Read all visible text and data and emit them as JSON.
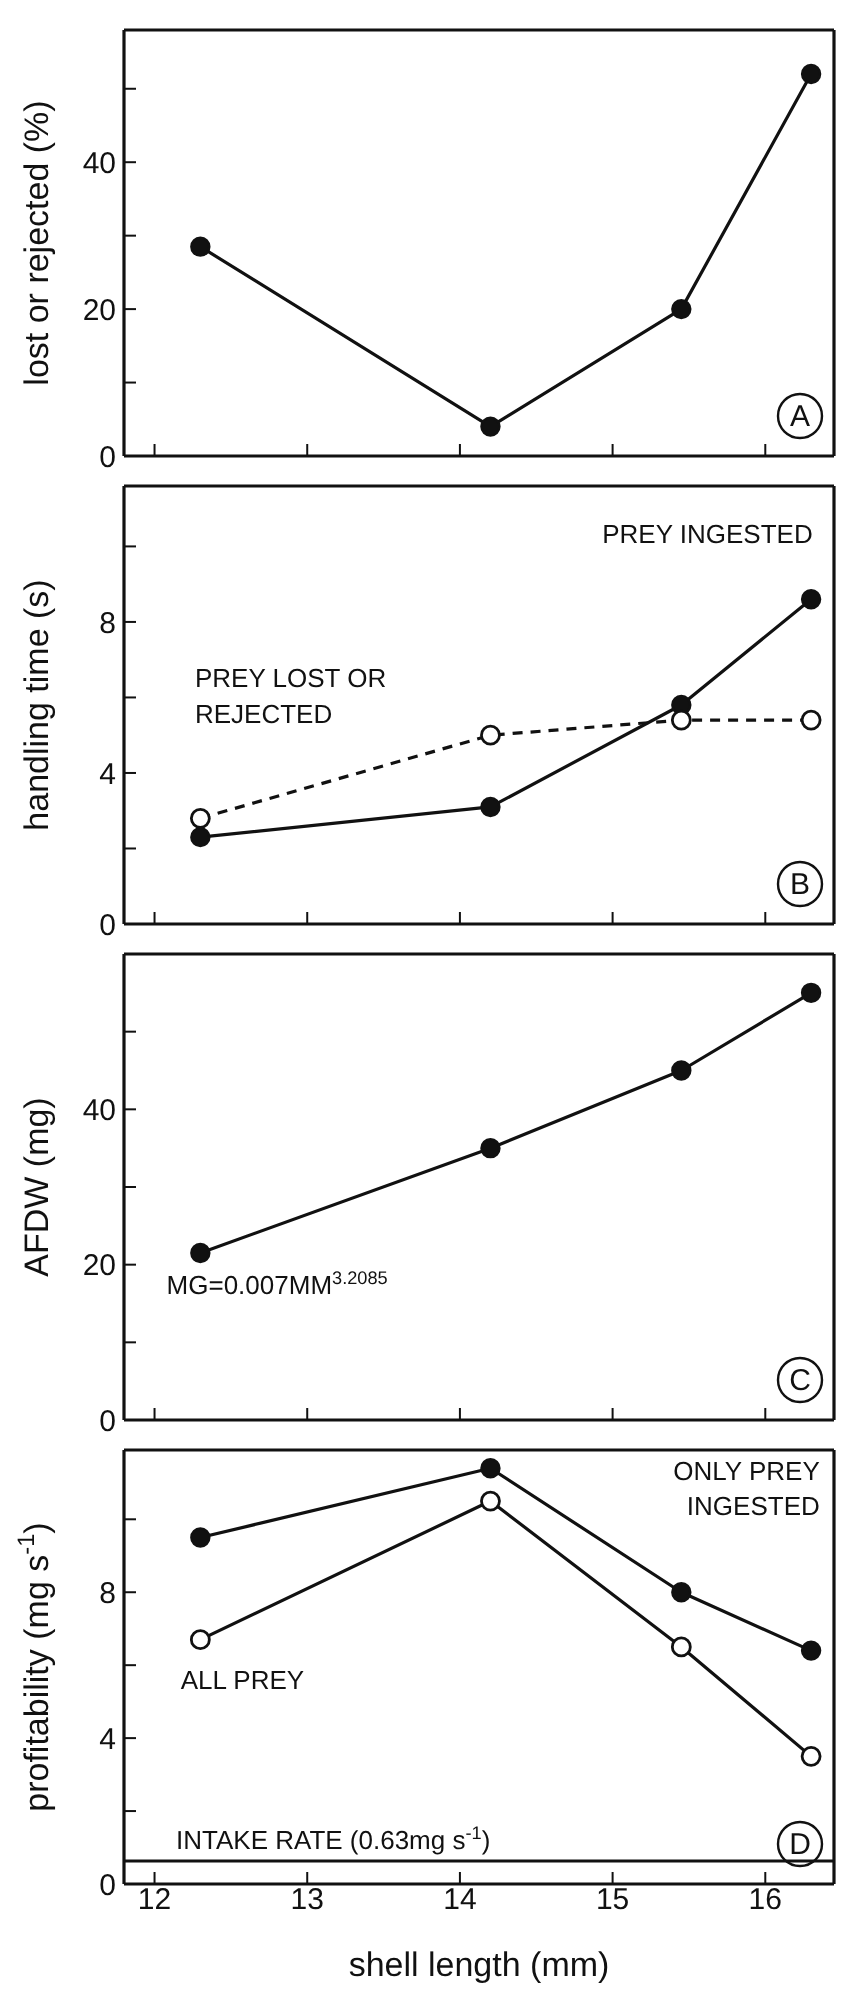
{
  "chart_data": [
    {
      "type": "line",
      "ylabel": "lost or rejected (%)",
      "x": [
        12.3,
        14.2,
        15.45,
        16.3
      ],
      "series": [
        {
          "color": "#111111",
          "values": [
            28.5,
            4,
            20,
            52
          ]
        }
      ],
      "marker": "circle",
      "line_style": "solid",
      "xlim": [
        11.8,
        16.45
      ],
      "xticks": [
        12,
        13,
        14,
        15,
        16
      ],
      "ylim": [
        0,
        58
      ],
      "yticks": [
        0,
        {
          "value": 10,
          "label": null
        },
        20,
        {
          "value": 30,
          "label": null
        },
        40,
        {
          "value": 50,
          "label": null
        }
      ],
      "tick_labels": "y",
      "annotations": [
        "A"
      ]
    },
    {
      "type": "line",
      "ylabel": "handling time (s)",
      "x": [
        12.3,
        14.2,
        15.45,
        16.3
      ],
      "series": [
        {
          "color": "#111111",
          "values": [
            2.3,
            3.1,
            5.8,
            8.6
          ],
          "line_style": "solid"
        },
        {
          "color": "#111111",
          "values": [
            2.8,
            5.0,
            5.4,
            5.4
          ],
          "line_style": "dashed",
          "marker": "open circle"
        }
      ],
      "marker": "circle",
      "xlim": [
        11.8,
        16.45
      ],
      "xticks": [
        12,
        13,
        14,
        15,
        16
      ],
      "ylim": [
        0,
        11.6
      ],
      "yticks": [
        0,
        {
          "value": 2,
          "label": null
        },
        4,
        {
          "value": 6,
          "label": null
        },
        8,
        {
          "value": 10,
          "label": null
        }
      ],
      "tick_labels": "y",
      "annotations": [
        "PREY INGESTED",
        "PREY LOST OR",
        "REJECTED",
        "B"
      ]
    },
    {
      "type": "line",
      "ylabel": "AFDW (mg)",
      "x": [
        12.3,
        14.2,
        15.45,
        16.3
      ],
      "series": [
        {
          "color": "#111111",
          "values": [
            21.5,
            35,
            45,
            55
          ]
        }
      ],
      "marker": "circle",
      "line_style": "solid",
      "xlim": [
        11.8,
        16.45
      ],
      "xticks": [
        12,
        13,
        14,
        15,
        16
      ],
      "ylim": [
        0,
        60
      ],
      "yticks": [
        0,
        {
          "value": 10,
          "label": null
        },
        20,
        {
          "value": 30,
          "label": null
        },
        40,
        {
          "value": 50,
          "label": null
        }
      ],
      "tick_labels": "y",
      "annotations": [
        "MG=0.007MM$^{3.2085}$",
        "C"
      ]
    },
    {
      "type": "line",
      "ylabel": "profitability (mg s$^{-1}$)",
      "xlabel": "shell length (mm)",
      "x": [
        12.3,
        14.2,
        15.45,
        16.3
      ],
      "series": [
        {
          "color": "#111111",
          "values": [
            9.5,
            11.4,
            8.0,
            6.4
          ]
        },
        {
          "color": "#111111",
          "values": [
            6.7,
            10.5,
            6.5,
            3.5
          ],
          "marker": "open circle"
        }
      ],
      "marker": "circle",
      "line_style": "solid",
      "xlim": [
        11.8,
        16.45
      ],
      "xticks": [
        12,
        13,
        14,
        15,
        16
      ],
      "ylim": [
        0,
        11.9
      ],
      "yticks": [
        0,
        {
          "value": 2,
          "label": null
        },
        4,
        {
          "value": 6,
          "label": null
        },
        8,
        {
          "value": 10,
          "label": null
        }
      ],
      "ref_lines": [
        {
          "axis": "y",
          "value": 0.63,
          "label": "INTAKE RATE (0.63mg s$^{-1}$)",
          "color": "#111111"
        }
      ],
      "annotations": [
        "ONLY PREY",
        "INGESTED",
        "ALL PREY",
        "D"
      ]
    }
  ]
}
